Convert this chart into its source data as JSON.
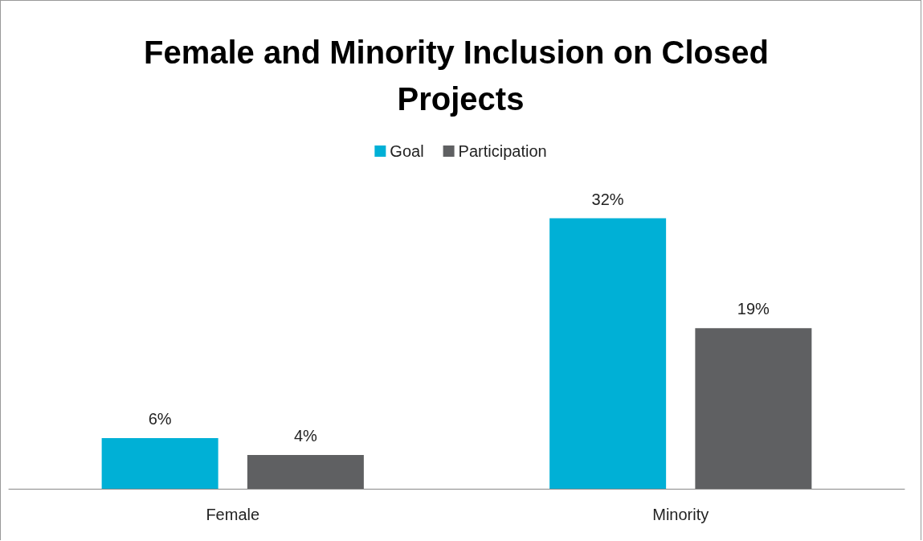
{
  "chart_data": {
    "type": "bar",
    "title": "Female and Minority Inclusion on Closed Projects",
    "categories": [
      "Female",
      "Minority"
    ],
    "series": [
      {
        "name": "Goal",
        "color": "#00b0d6",
        "values": [
          6,
          32
        ],
        "value_labels": [
          "6%",
          "32%"
        ]
      },
      {
        "name": "Participation",
        "color": "#5f6062",
        "values": [
          4,
          19
        ],
        "value_labels": [
          "4%",
          "19%"
        ]
      }
    ],
    "legend": "top",
    "grid": false
  }
}
